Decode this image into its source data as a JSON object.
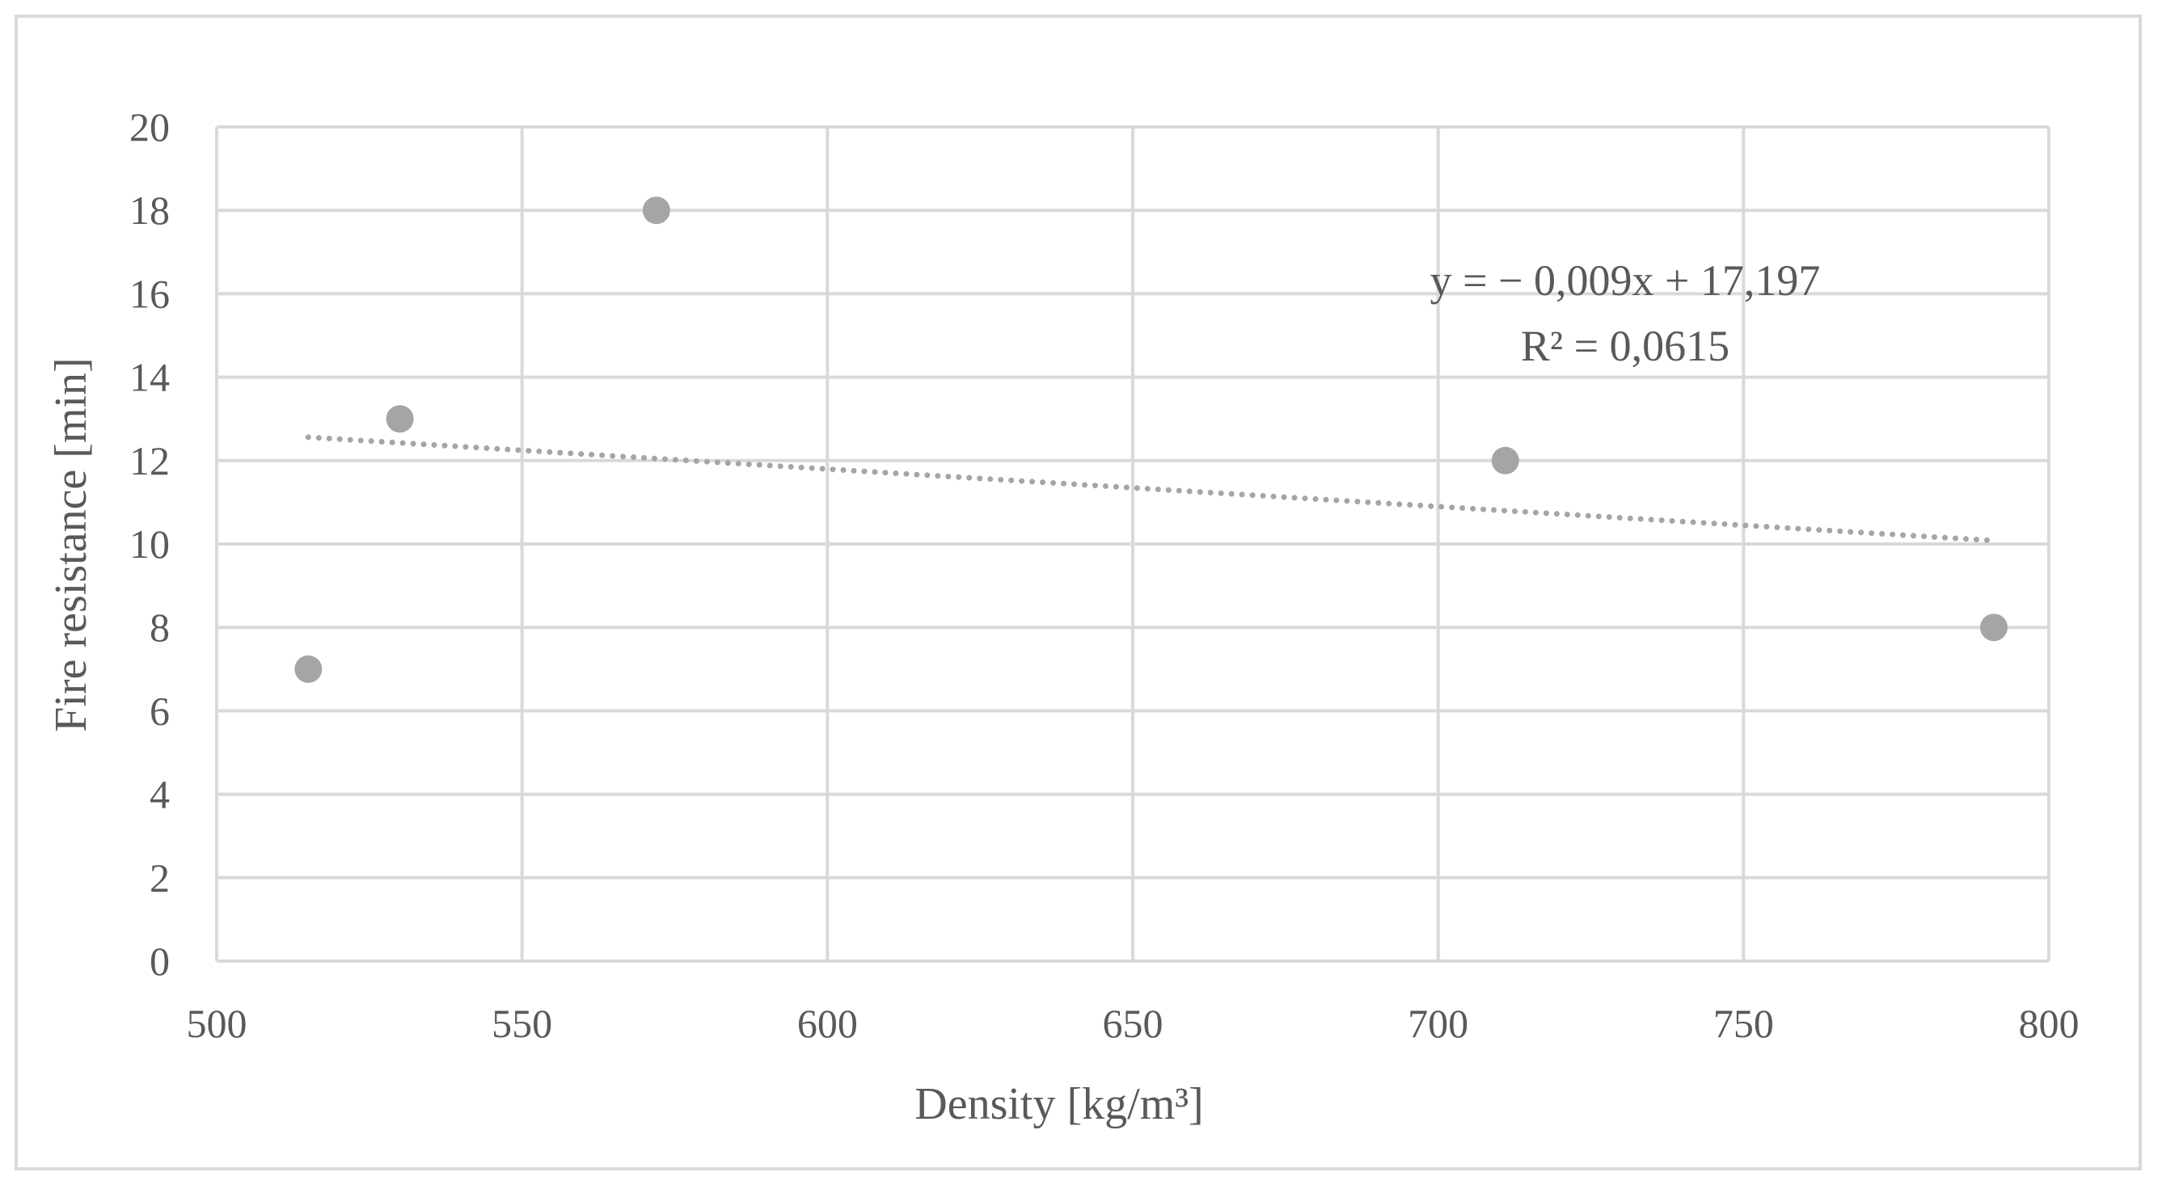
{
  "chart_data": {
    "type": "scatter",
    "title": "",
    "xlabel": "Density [kg/m³]",
    "ylabel": "Fire resistance [min]",
    "xlim": [
      500,
      800
    ],
    "ylim": [
      0,
      20
    ],
    "xticks": [
      "500",
      "550",
      "600",
      "650",
      "700",
      "750",
      "800"
    ],
    "yticks": [
      "0",
      "2",
      "4",
      "6",
      "8",
      "10",
      "12",
      "14",
      "16",
      "18",
      "20"
    ],
    "grid": true,
    "series": [
      {
        "name": "Fire resistance",
        "points": [
          {
            "x": 515,
            "y": 7
          },
          {
            "x": 530,
            "y": 13
          },
          {
            "x": 572,
            "y": 18
          },
          {
            "x": 711,
            "y": 12
          },
          {
            "x": 791,
            "y": 8
          }
        ],
        "color": "#a5a5a5"
      }
    ],
    "trendline": {
      "type": "linear",
      "style": "dotted",
      "color": "#a5a5a5",
      "x_range": [
        515,
        791
      ],
      "start_y": 12.56,
      "end_y": 10.08,
      "equation": "y = − 0,009x + 17,197",
      "r_squared": "R² = 0,0615"
    }
  },
  "colors": {
    "grid": "#d9d9d9",
    "text": "#595959",
    "marker": "#a5a5a5",
    "frame": "#d9d9d9"
  }
}
